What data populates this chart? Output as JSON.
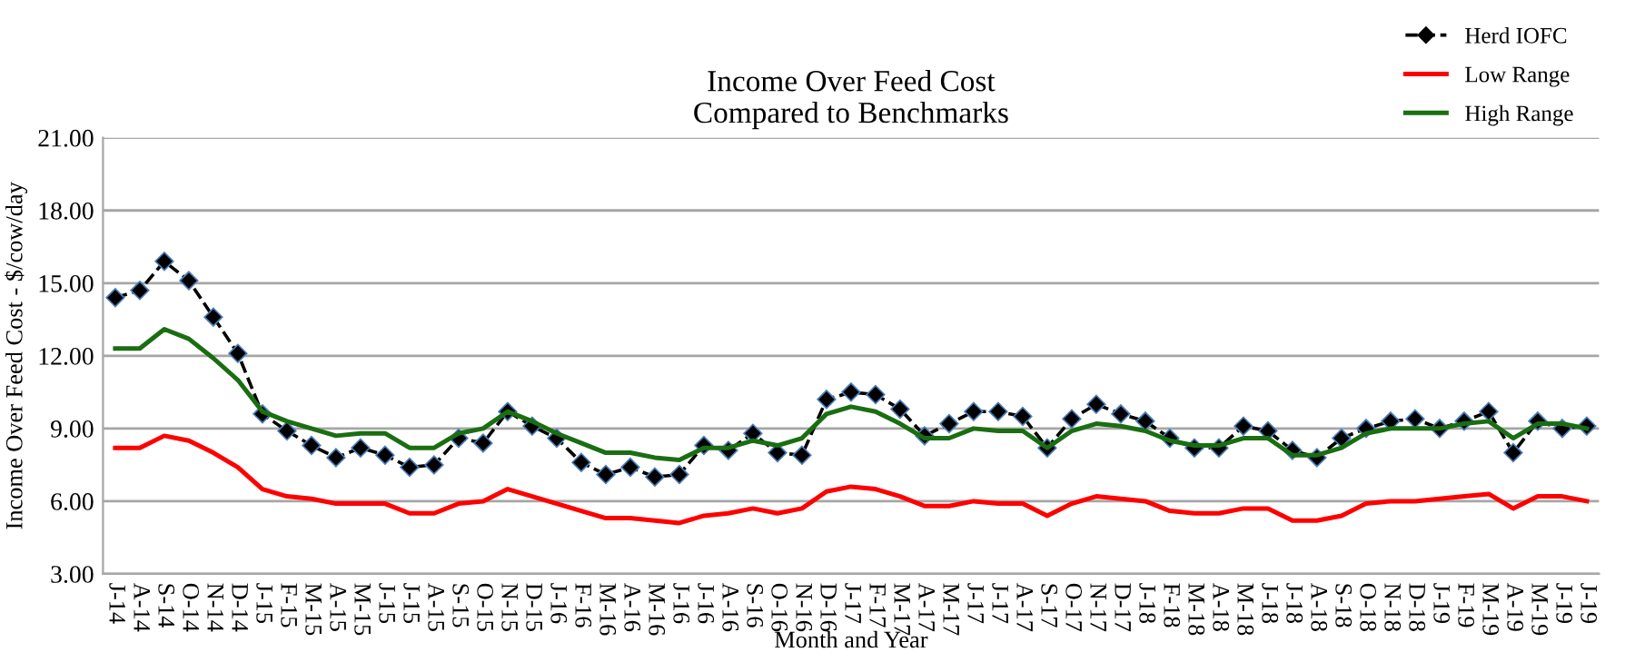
{
  "chart_data": {
    "type": "line",
    "title": "Income Over Feed Cost\nCompared to Benchmarks",
    "xlabel": "Month and Year",
    "ylabel": "Income Over Feed Cost - $/cow/day",
    "categories": [
      "J-14",
      "A-14",
      "S-14",
      "O-14",
      "N-14",
      "D-14",
      "J-15",
      "F-15",
      "M-15",
      "A-15",
      "M-15",
      "J-15",
      "J-15",
      "A-15",
      "S-15",
      "O-15",
      "N-15",
      "D-15",
      "J-16",
      "F-16",
      "M-16",
      "A-16",
      "M-16",
      "J-16",
      "J-16",
      "A-16",
      "S-16",
      "O-16",
      "N-16",
      "D-16",
      "J-17",
      "F-17",
      "M-17",
      "A-17",
      "M-17",
      "J-17",
      "J-17",
      "A-17",
      "S-17",
      "O-17",
      "N-17",
      "D-17",
      "J-18",
      "F-18",
      "M-18",
      "A-18",
      "M-18",
      "J-18",
      "J-18",
      "A-18",
      "S-18",
      "O-18",
      "N-18",
      "D-18",
      "J-19",
      "F-19",
      "M-19",
      "A-19",
      "M-19",
      "J-19",
      "J-19"
    ],
    "series": [
      {
        "name": "Herd IOFC",
        "color": "#000000",
        "marker": "diamond",
        "line_style": "dashed",
        "values": [
          14.4,
          14.7,
          15.9,
          15.1,
          13.6,
          12.1,
          9.6,
          8.9,
          8.3,
          7.8,
          8.2,
          7.9,
          7.4,
          7.5,
          8.6,
          8.4,
          9.7,
          9.1,
          8.6,
          7.6,
          7.1,
          7.4,
          7.0,
          7.1,
          8.3,
          8.1,
          8.8,
          8.0,
          7.9,
          10.2,
          10.5,
          10.4,
          9.8,
          8.7,
          9.2,
          9.7,
          9.7,
          9.5,
          8.2,
          9.4,
          10.0,
          9.6,
          9.3,
          8.6,
          8.2,
          8.2,
          9.1,
          8.9,
          8.1,
          7.8,
          8.6,
          9.0,
          9.3,
          9.4,
          9.0,
          9.3,
          9.7,
          8.0,
          9.3,
          9.0,
          9.1
        ]
      },
      {
        "name": "Low Range",
        "color": "#ff0000",
        "marker": "none",
        "line_style": "solid",
        "values": [
          8.2,
          8.2,
          8.7,
          8.5,
          8.0,
          7.4,
          6.5,
          6.2,
          6.1,
          5.9,
          5.9,
          5.9,
          5.5,
          5.5,
          5.9,
          6.0,
          6.5,
          6.2,
          5.9,
          5.6,
          5.3,
          5.3,
          5.2,
          5.1,
          5.4,
          5.5,
          5.7,
          5.5,
          5.7,
          6.4,
          6.6,
          6.5,
          6.2,
          5.8,
          5.8,
          6.0,
          5.9,
          5.9,
          5.4,
          5.9,
          6.2,
          6.1,
          6.0,
          5.6,
          5.5,
          5.5,
          5.7,
          5.7,
          5.2,
          5.2,
          5.4,
          5.9,
          6.0,
          6.0,
          6.1,
          6.2,
          6.3,
          5.7,
          6.2,
          6.2,
          6.0
        ]
      },
      {
        "name": "High Range",
        "color": "#1a6e12",
        "marker": "none",
        "line_style": "solid",
        "values": [
          12.3,
          12.3,
          13.1,
          12.7,
          11.9,
          11.0,
          9.7,
          9.3,
          9.0,
          8.7,
          8.8,
          8.8,
          8.2,
          8.2,
          8.8,
          9.0,
          9.7,
          9.3,
          8.8,
          8.4,
          8.0,
          8.0,
          7.8,
          7.7,
          8.2,
          8.2,
          8.5,
          8.3,
          8.6,
          9.6,
          9.9,
          9.7,
          9.2,
          8.6,
          8.6,
          9.0,
          8.9,
          8.9,
          8.2,
          8.9,
          9.2,
          9.1,
          8.9,
          8.5,
          8.3,
          8.3,
          8.6,
          8.6,
          7.9,
          7.9,
          8.2,
          8.8,
          9.0,
          9.0,
          9.0,
          9.2,
          9.3,
          8.6,
          9.2,
          9.2,
          9.0
        ]
      }
    ],
    "ylim": [
      3,
      21
    ],
    "yticks": [
      {
        "value": 3,
        "label": "3.00"
      },
      {
        "value": 6,
        "label": "6.00"
      },
      {
        "value": 9,
        "label": "9.00"
      },
      {
        "value": 12,
        "label": "12.00"
      },
      {
        "value": 15,
        "label": "15.00"
      },
      {
        "value": 18,
        "label": "18.00"
      },
      {
        "value": 21,
        "label": "21.00"
      }
    ],
    "grid": "y",
    "legend": "top right"
  }
}
